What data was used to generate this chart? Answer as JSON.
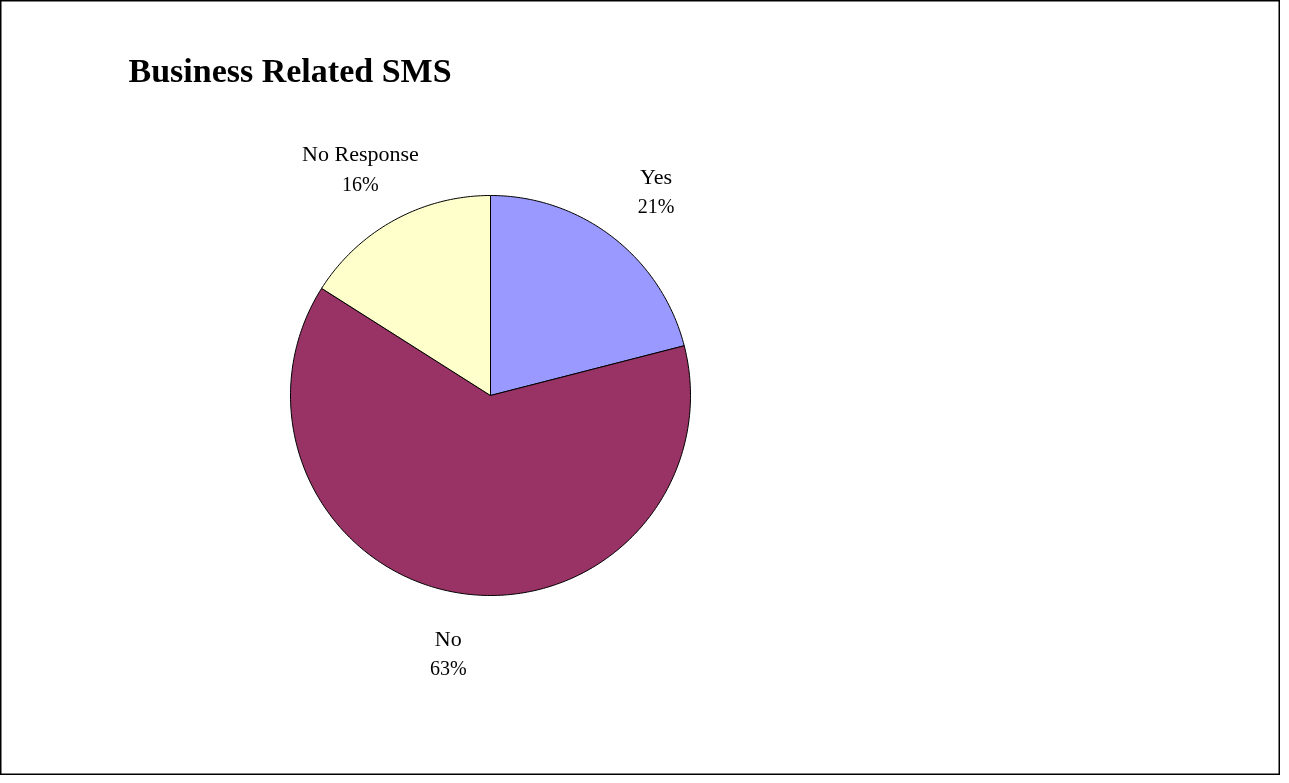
{
  "chart_data": {
    "type": "pie",
    "title": "Business Related SMS",
    "categories": [
      "Yes",
      "No",
      "No Response"
    ],
    "values": [
      21,
      63,
      16
    ],
    "value_labels": [
      "21%",
      "63%",
      "16%"
    ],
    "colors": [
      "#9999ff",
      "#993366",
      "#ffffcc"
    ]
  }
}
